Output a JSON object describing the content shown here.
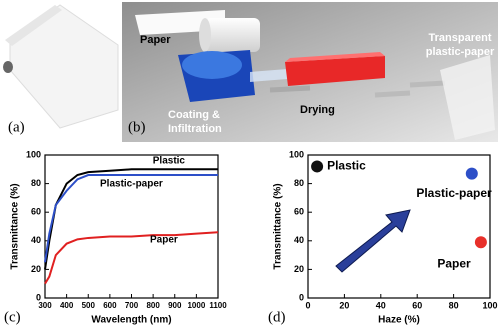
{
  "panels": {
    "a_label": "(a)",
    "b_label": "(b)",
    "paper": "Paper",
    "transparent_lines": [
      "Transparent",
      "plastic-paper"
    ],
    "coating_lines": [
      "Coating &",
      "Infiltration"
    ],
    "drying": "Drying"
  },
  "chart_data": [
    {
      "type": "line",
      "panel_label": "(c)",
      "x_label": "Wavelength (nm)",
      "y_label": "Transmittance (%)",
      "x": [
        300,
        320,
        350,
        400,
        450,
        500,
        600,
        700,
        800,
        900,
        1000,
        1100
      ],
      "series": [
        {
          "name": "Plastic",
          "color": "#000000",
          "values": [
            20,
            40,
            65,
            80,
            86,
            88,
            89,
            90,
            90,
            90,
            90,
            90
          ]
        },
        {
          "name": "Plastic-paper",
          "color": "#2d4fc8",
          "values": [
            25,
            45,
            65,
            75,
            83,
            86,
            86,
            86,
            86,
            86,
            86,
            86
          ]
        },
        {
          "name": "Paper",
          "color": "#e02020",
          "values": [
            10,
            15,
            30,
            38,
            41,
            42,
            43,
            43,
            44,
            44,
            45,
            46
          ]
        }
      ],
      "xlim": [
        300,
        1100
      ],
      "xticks": [
        300,
        400,
        500,
        600,
        700,
        800,
        900,
        1000,
        1100
      ],
      "ylim": [
        0,
        100
      ],
      "yticks": [
        0,
        20,
        40,
        60,
        80,
        100
      ]
    },
    {
      "type": "scatter",
      "panel_label": "(d)",
      "x_label": "Haze (%)",
      "y_label": "Transmittance (%)",
      "series": [
        {
          "name": "Plastic",
          "color": "#111111",
          "x": [
            5
          ],
          "values": [
            92
          ]
        },
        {
          "name": "Plastic-paper",
          "color": "#2d4fc8",
          "x": [
            90
          ],
          "values": [
            87
          ]
        },
        {
          "name": "Paper",
          "color": "#e8302a",
          "x": [
            95
          ],
          "values": [
            39
          ]
        }
      ],
      "xlim": [
        0,
        100
      ],
      "xticks": [
        0,
        20,
        40,
        60,
        80,
        100
      ],
      "ylim": [
        0,
        100
      ],
      "yticks": [
        0,
        20,
        40,
        60,
        80,
        100
      ]
    }
  ]
}
